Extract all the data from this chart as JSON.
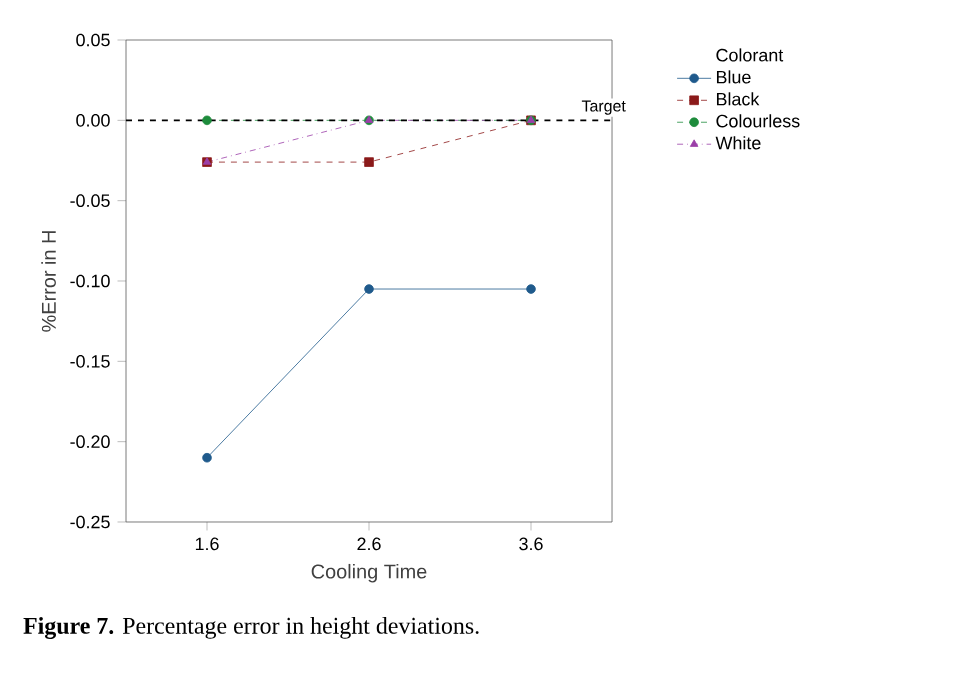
{
  "chart_data": {
    "type": "line",
    "categories": [
      "1.6",
      "2.6",
      "3.6"
    ],
    "xlabel": "Cooling Time",
    "ylabel": "%Error in H",
    "legend_title": "Colorant",
    "series": [
      {
        "name": "Blue",
        "color": "#1f5a8c",
        "values": [
          -0.21,
          -0.105,
          -0.105
        ],
        "marker": "circle",
        "line_style": "solid"
      },
      {
        "name": "Black",
        "color": "#8b1a1a",
        "values": [
          -0.026,
          -0.026,
          0
        ],
        "marker": "square",
        "line_style": "dashed"
      },
      {
        "name": "Colourless",
        "color": "#1e8c3c",
        "values": [
          0,
          0,
          0
        ],
        "marker": "circle",
        "line_style": "dashed"
      },
      {
        "name": "White",
        "color": "#9b3fa8",
        "values": [
          -0.026,
          0,
          0
        ],
        "marker": "triangle",
        "line_style": "dashdot"
      }
    ],
    "ylim": [
      -0.25,
      0.05
    ],
    "yticks": [
      {
        "value": -0.25,
        "label": "-0.25"
      },
      {
        "value": -0.2,
        "label": "-0.20"
      },
      {
        "value": -0.15,
        "label": "-0.15"
      },
      {
        "value": -0.1,
        "label": "-0.10"
      },
      {
        "value": -0.05,
        "label": "-0.05"
      },
      {
        "value": 0,
        "label": "0.00"
      },
      {
        "value": 0.05,
        "label": "0.05"
      }
    ],
    "ref_lines": [
      {
        "axis": "y",
        "value": 0,
        "label": "Target",
        "color": "#000000",
        "line_style": "dashed"
      }
    ],
    "legend": "top right",
    "grid": false,
    "annotations": [
      "**Figure 7.** Percentage error in height deviations."
    ]
  }
}
